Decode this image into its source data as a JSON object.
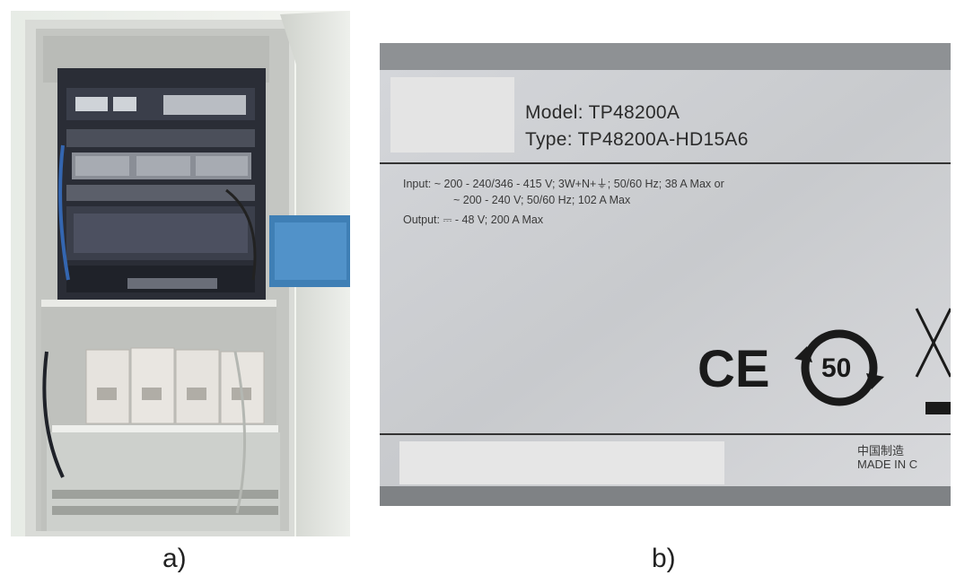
{
  "captions": {
    "a": "a)",
    "b": "b)"
  },
  "nameplate": {
    "model": "Model: TP48200A",
    "type": "Type: TP48200A-HD15A6",
    "input_line1": "Input: ~ 200 - 240/346 - 415 V; 3W+N+⏚; 50/60 Hz; 38 A Max or",
    "input_line2": "~ 200 - 240 V; 50/60 Hz; 102 A Max",
    "output_line": "Output: ⎓ - 48 V; 200 A Max",
    "ce_mark": "CE",
    "recycle_mark": "50",
    "origin_cn": "中国制造",
    "origin_en": "MADE IN C"
  },
  "colors": {
    "plate": "#c9cbcf",
    "cabinet_frame": "#d7d9d6",
    "rack_dark": "#2a2d36",
    "battery": "#e6e3de"
  }
}
